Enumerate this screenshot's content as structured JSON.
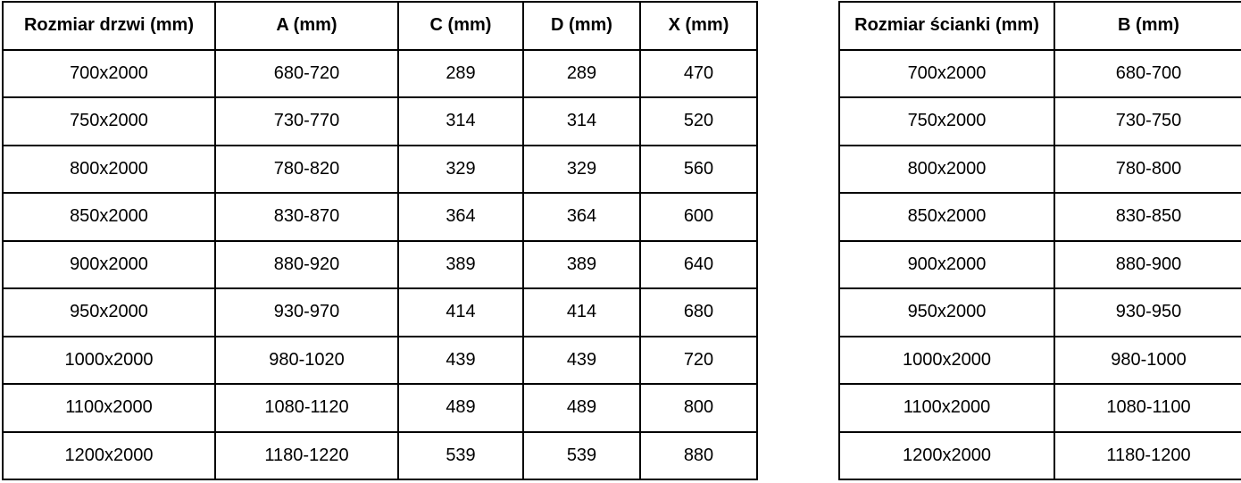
{
  "page": {
    "background_color": "#ffffff",
    "text_color": "#000000",
    "border_color": "#000000"
  },
  "door_table": {
    "headers": [
      "Rozmiar drzwi (mm)",
      "A (mm)",
      "C (mm)",
      "D (mm)",
      "X (mm)"
    ],
    "rows": [
      [
        "700x2000",
        "680-720",
        "289",
        "289",
        "470"
      ],
      [
        "750x2000",
        "730-770",
        "314",
        "314",
        "520"
      ],
      [
        "800x2000",
        "780-820",
        "329",
        "329",
        "560"
      ],
      [
        "850x2000",
        "830-870",
        "364",
        "364",
        "600"
      ],
      [
        "900x2000",
        "880-920",
        "389",
        "389",
        "640"
      ],
      [
        "950x2000",
        "930-970",
        "414",
        "414",
        "680"
      ],
      [
        "1000x2000",
        "980-1020",
        "439",
        "439",
        "720"
      ],
      [
        "1100x2000",
        "1080-1120",
        "489",
        "489",
        "800"
      ],
      [
        "1200x2000",
        "1180-1220",
        "539",
        "539",
        "880"
      ]
    ]
  },
  "wall_table": {
    "headers": [
      "Rozmiar ścianki (mm)",
      "B (mm)"
    ],
    "rows": [
      [
        "700x2000",
        "680-700"
      ],
      [
        "750x2000",
        "730-750"
      ],
      [
        "800x2000",
        "780-800"
      ],
      [
        "850x2000",
        "830-850"
      ],
      [
        "900x2000",
        "880-900"
      ],
      [
        "950x2000",
        "930-950"
      ],
      [
        "1000x2000",
        "980-1000"
      ],
      [
        "1100x2000",
        "1080-1100"
      ],
      [
        "1200x2000",
        "1180-1200"
      ]
    ]
  }
}
